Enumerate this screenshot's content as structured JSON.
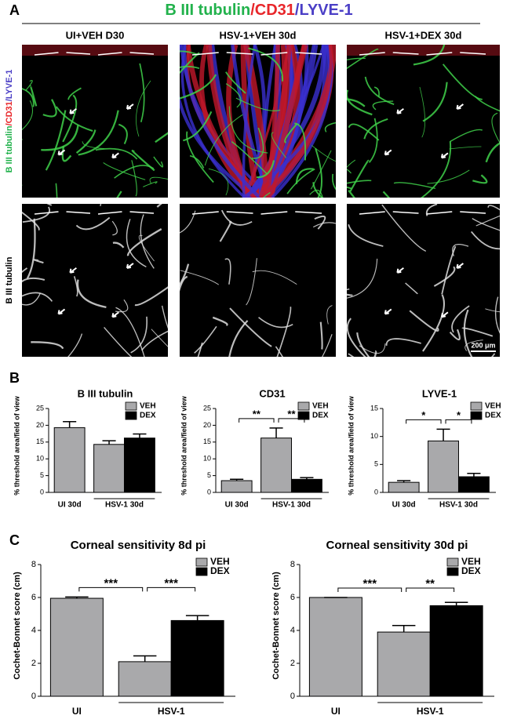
{
  "figure": {
    "panel_labels": [
      "A",
      "B",
      "C"
    ],
    "title": {
      "parts": [
        "B III tubulin",
        "/CD31",
        "/LYVE-1"
      ],
      "colors": [
        "#22b24c",
        "#e8262a",
        "#4b3fc6"
      ]
    },
    "column_titles": [
      "UI+VEH D30",
      "HSV-1+VEH 30d",
      "HSV-1+DEX 30d"
    ],
    "row_labels": [
      {
        "parts": [
          "B III tubulin",
          "/CD31",
          "/LYVE-1"
        ],
        "colors": [
          "#22b24c",
          "#e8262a",
          "#4b3fc6"
        ]
      },
      {
        "parts": [
          "B III tubulin"
        ],
        "colors": [
          "#000000"
        ]
      }
    ],
    "scale_bar": "200 μm"
  },
  "chart_data": [
    {
      "type": "bar",
      "title": "B III tubulin",
      "y_label": "% threshold area/field of view",
      "categories": [
        "UI 30d",
        "HSV-1 30d"
      ],
      "series": [
        {
          "name": "VEH",
          "color": "#a9a9ab",
          "values": [
            19.3,
            14.3
          ],
          "errors": [
            1.8,
            1.1
          ]
        },
        {
          "name": "DEX",
          "color": "#000000",
          "values": [
            null,
            16.2
          ],
          "errors": [
            null,
            1.2
          ]
        }
      ],
      "ylim": [
        0,
        25
      ],
      "yticks": [
        0,
        5,
        10,
        15,
        20,
        25
      ],
      "legend": "upper right",
      "annotations": []
    },
    {
      "type": "bar",
      "title": "CD31",
      "y_label": "% threshold area/field of view",
      "categories": [
        "UI 30d",
        "HSV-1 30d"
      ],
      "series": [
        {
          "name": "VEH",
          "color": "#a9a9ab",
          "values": [
            3.5,
            16.2
          ],
          "errors": [
            0.4,
            3.0
          ]
        },
        {
          "name": "DEX",
          "color": "#000000",
          "values": [
            null,
            3.9
          ],
          "errors": [
            null,
            0.5
          ]
        }
      ],
      "ylim": [
        0,
        25
      ],
      "yticks": [
        0,
        5,
        10,
        15,
        20,
        25
      ],
      "legend": "upper right",
      "annotations": [
        {
          "text": "**"
        },
        {
          "text": "**"
        }
      ]
    },
    {
      "type": "bar",
      "title": "LYVE-1",
      "y_label": "% threshold area/field of view",
      "categories": [
        "UI 30d",
        "HSV-1 30d"
      ],
      "series": [
        {
          "name": "VEH",
          "color": "#a9a9ab",
          "values": [
            1.8,
            9.2
          ],
          "errors": [
            0.3,
            2.1
          ]
        },
        {
          "name": "DEX",
          "color": "#000000",
          "values": [
            null,
            2.8
          ],
          "errors": [
            null,
            0.6
          ]
        }
      ],
      "ylim": [
        0,
        15
      ],
      "yticks": [
        0,
        5,
        10,
        15
      ],
      "legend": "upper right",
      "annotations": [
        {
          "text": "*"
        },
        {
          "text": "*"
        }
      ]
    },
    {
      "type": "bar",
      "title": "Corneal sensitivity 8d pi",
      "y_label": "Cochet-Bonnet score (cm)",
      "categories": [
        "UI",
        "HSV-1"
      ],
      "series": [
        {
          "name": "VEH",
          "color": "#a9a9ab",
          "values": [
            5.95,
            2.1
          ],
          "errors": [
            0.08,
            0.35
          ]
        },
        {
          "name": "DEX",
          "color": "#000000",
          "values": [
            null,
            4.6
          ],
          "errors": [
            null,
            0.3
          ]
        }
      ],
      "ylim": [
        0,
        8
      ],
      "yticks": [
        0,
        2,
        4,
        6,
        8
      ],
      "legend": "upper right",
      "annotations": [
        {
          "text": "***"
        },
        {
          "text": "***"
        }
      ]
    },
    {
      "type": "bar",
      "title": "Corneal sensitivity 30d pi",
      "y_label": "Cochet-Bonnet score (cm)",
      "categories": [
        "UI",
        "HSV-1"
      ],
      "series": [
        {
          "name": "VEH",
          "color": "#a9a9ab",
          "values": [
            6.0,
            3.9
          ],
          "errors": [
            0,
            0.4
          ]
        },
        {
          "name": "DEX",
          "color": "#000000",
          "values": [
            null,
            5.5
          ],
          "errors": [
            null,
            0.2
          ]
        }
      ],
      "ylim": [
        0,
        8
      ],
      "yticks": [
        0,
        2,
        4,
        6,
        8
      ],
      "legend": "upper right",
      "annotations": [
        {
          "text": "***"
        },
        {
          "text": "**"
        }
      ]
    }
  ]
}
